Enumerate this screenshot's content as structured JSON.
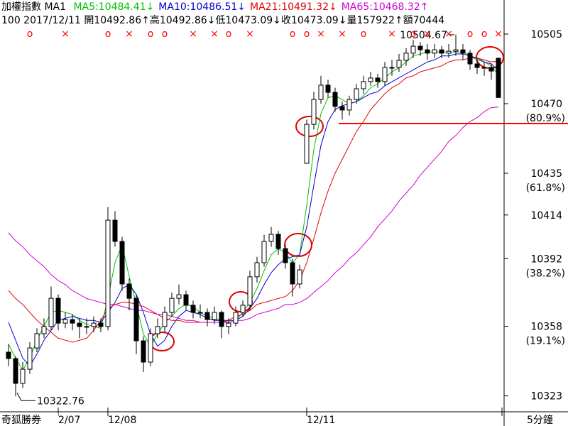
{
  "chart_data": {
    "type": "candlestick",
    "title": "加權指數 MA1",
    "info": "100 2017/12/11 開10492.86↑高10492.86↓低10473.09↓收10473.09↓量157922↑額70444",
    "up_color": "#ffffff",
    "down_color": "#000000",
    "candles": [
      [
        10345,
        10349,
        10338,
        10341.8
      ],
      [
        10341.8,
        10343,
        10322.76,
        10329.3
      ],
      [
        10329.3,
        10340,
        10327,
        10336.4
      ],
      [
        10336.4,
        10350,
        10334,
        10347.1
      ],
      [
        10347.1,
        10357,
        10345,
        10354.3
      ],
      [
        10354.3,
        10362,
        10352,
        10357.9
      ],
      [
        10357.9,
        10378,
        10356,
        10372.1
      ],
      [
        10372.1,
        10374,
        10356,
        10359.6
      ],
      [
        10359.6,
        10365,
        10357,
        10361.4
      ],
      [
        10361.4,
        10364,
        10356,
        10359.6
      ],
      [
        10359.6,
        10362,
        10352,
        10357.9
      ],
      [
        10357.9,
        10362,
        10354,
        10357.9
      ],
      [
        10357.9,
        10363,
        10355,
        10359.6
      ],
      [
        10359.6,
        10362,
        10355,
        10357.9
      ],
      [
        10357.9,
        10418,
        10356,
        10411.4
      ],
      [
        10411.4,
        10416,
        10398,
        10400.7
      ],
      [
        10400.7,
        10403,
        10376,
        10379.3
      ],
      [
        10379.3,
        10382,
        10366,
        10372.1
      ],
      [
        10372.1,
        10374,
        10344,
        10350.7
      ],
      [
        10350.7,
        10353,
        10335,
        10340
      ],
      [
        10340,
        10357,
        10338,
        10354.3
      ],
      [
        10354.3,
        10362,
        10352,
        10357.9
      ],
      [
        10357.9,
        10368,
        10355,
        10365
      ],
      [
        10365,
        10375,
        10363,
        10372.1
      ],
      [
        10372.1,
        10379,
        10369,
        10373.9
      ],
      [
        10373.9,
        10376,
        10366,
        10368.6
      ],
      [
        10368.6,
        10371,
        10362,
        10365
      ],
      [
        10365,
        10369,
        10362,
        10365
      ],
      [
        10365,
        10367,
        10358,
        10361.4
      ],
      [
        10361.4,
        10368,
        10359,
        10365
      ],
      [
        10365,
        10366,
        10352,
        10357.9
      ],
      [
        10357.9,
        10362,
        10354,
        10359.6
      ],
      [
        10359.6,
        10368,
        10358,
        10365
      ],
      [
        10365,
        10371,
        10363,
        10368.6
      ],
      [
        10368.6,
        10386,
        10366,
        10382.9
      ],
      [
        10382.9,
        10393,
        10380,
        10390
      ],
      [
        10390,
        10404,
        10388,
        10400.7
      ],
      [
        10400.7,
        10408,
        10398,
        10404.3
      ],
      [
        10404.3,
        10406,
        10394,
        10397.1
      ],
      [
        10397.1,
        10399,
        10387,
        10390
      ],
      [
        10390,
        10392,
        10373,
        10379.3
      ],
      [
        10379.3,
        10389,
        10377,
        10386.4
      ],
      [
        10440,
        10462,
        10440,
        10459.6
      ],
      [
        10459.6,
        10476,
        10457,
        10472.1
      ],
      [
        10472.1,
        10484,
        10470,
        10479.3
      ],
      [
        10479.3,
        10482,
        10473,
        10475.7
      ],
      [
        10475.7,
        10478,
        10466,
        10468.6
      ],
      [
        10468.6,
        10471,
        10462,
        10466.8
      ],
      [
        10466.8,
        10474,
        10464,
        10472.1
      ],
      [
        10472.1,
        10480,
        10470,
        10477.5
      ],
      [
        10477.5,
        10484,
        10475,
        10481.1
      ],
      [
        10481.1,
        10486,
        10479,
        10482.9
      ],
      [
        10482.9,
        10485,
        10478,
        10481.1
      ],
      [
        10481.1,
        10491,
        10479,
        10488.2
      ],
      [
        10488.2,
        10492,
        10484,
        10488.2
      ],
      [
        10488.2,
        10495,
        10486,
        10491.8
      ],
      [
        10491.8,
        10498,
        10489,
        10495.4
      ],
      [
        10495.4,
        10502,
        10493,
        10498.9
      ],
      [
        10498.9,
        10501,
        10494,
        10497.1
      ],
      [
        10497.1,
        10500,
        10492,
        10495.4
      ],
      [
        10495.4,
        10500,
        10493,
        10497.1
      ],
      [
        10497.1,
        10499,
        10493,
        10495.4
      ],
      [
        10495.4,
        10500,
        10493,
        10496.4
      ],
      [
        10496.4,
        10504.67,
        10494,
        10497.1
      ],
      [
        10497.1,
        10500,
        10492,
        10495.4
      ],
      [
        10495.4,
        10497,
        10487,
        10490
      ],
      [
        10490,
        10493,
        10485,
        10488.2
      ],
      [
        10488.2,
        10491,
        10484,
        10488.2
      ],
      [
        10488.2,
        10490,
        10482,
        10486.4
      ],
      [
        10492.86,
        10492.86,
        10473.09,
        10473.09
      ]
    ],
    "series": [
      {
        "name": "MA5:10484.41↓",
        "color": "#00c000",
        "values": [
          10349,
          10342,
          10336,
          10342,
          10351,
          10358,
          10365,
          10366,
          10365,
          10364,
          10361,
          10359,
          10358,
          10357,
          10372,
          10390,
          10399,
          10383,
          10369,
          10354,
          10348,
          10354,
          10360,
          10363,
          10367,
          10369,
          10368,
          10365,
          10363,
          10362,
          10361,
          10360,
          10361,
          10365,
          10370,
          10377,
          10386,
          10394,
          10397,
          10395,
          10390,
          10394,
          10419,
          10447,
          10465,
          10473,
          10474,
          10472,
          10470,
          10471,
          10474,
          10478,
          10480,
          10483,
          10486,
          10488,
          10491,
          10494,
          10495,
          10496,
          10496,
          10496,
          10496,
          10496,
          10496,
          10494,
          10492,
          10491,
          10489,
          10484.41
        ]
      },
      {
        "name": "MA10:10486.51↓",
        "color": "#0000d0",
        "values": [
          10360,
          10351,
          10342,
          10338,
          10344,
          10351,
          10356,
          10361,
          10362,
          10363,
          10362,
          10361,
          10361,
          10360,
          10365,
          10370,
          10377,
          10379,
          10374,
          10365,
          10354,
          10348,
          10351,
          10358,
          10363,
          10366,
          10365,
          10364,
          10362,
          10361,
          10361,
          10361,
          10361,
          10363,
          10367,
          10372,
          10379,
          10385,
          10389,
          10392,
          10393,
          10394,
          10408,
          10429,
          10449,
          10461,
          10467,
          10469,
          10470,
          10471,
          10473,
          10475,
          10476,
          10479,
          10481,
          10483,
          10485,
          10487,
          10489,
          10491,
          10492,
          10494,
          10494,
          10495,
          10495,
          10494,
          10493,
          10491,
          10490,
          10486.51
        ]
      },
      {
        "name": "MA21:10491.32↓",
        "color": "#e00000",
        "values": [
          10376,
          10372,
          10369,
          10365,
          10361,
          10358,
          10355,
          10352,
          10351,
          10350,
          10351,
          10352,
          10356,
          10361,
          10367,
          10369,
          10370,
          10370,
          10369,
          10368,
          10366,
          10364,
          10362,
          10361,
          10361,
          10360,
          10360,
          10360,
          10360,
          10360,
          10360,
          10361,
          10363,
          10364,
          10366,
          10369,
          10370,
          10371,
          10372,
          10373,
          10376,
          10381,
          10390,
          10402,
          10415,
          10426,
          10435,
          10442,
          10449,
          10456,
          10461,
          10467,
          10471,
          10475,
          10478,
          10480,
          10483,
          10484,
          10486,
          10487,
          10488,
          10489,
          10491,
          10492,
          10492,
          10493,
          10493,
          10492,
          10491,
          10491.32
        ]
      },
      {
        "name": "MA65:10468.32↑",
        "color": "#d000d0",
        "values": [
          10405,
          10401,
          10398,
          10394,
          10391,
          10388,
          10384,
          10381,
          10379,
          10376,
          10374,
          10372,
          10371,
          10370,
          10369,
          10369,
          10368,
          10367,
          10366,
          10366,
          10365,
          10364,
          10364,
          10363,
          10362,
          10361,
          10361,
          10360,
          10360,
          10360,
          10360,
          10360,
          10361,
          10361,
          10362,
          10364,
          10365,
          10366,
          10367,
          10369,
          10369,
          10370,
          10372,
          10375,
          10378,
          10381,
          10385,
          10388,
          10392,
          10395,
          10399,
          10403,
          10408,
          10412,
          10416,
          10421,
          10425,
          10429,
          10434,
          10438,
          10442,
          10446,
          10451,
          10454,
          10458,
          10461,
          10463,
          10466,
          10468,
          10468.32
        ]
      }
    ],
    "ylim": [
      10315,
      10515
    ],
    "yticks": [
      10505,
      10470,
      10435,
      10414,
      10392,
      10358,
      10323
    ],
    "ytick_notes": [
      {
        "value": 10470,
        "label": "(80.9%)"
      },
      {
        "value": 10435,
        "label": "(61.8%)"
      },
      {
        "value": 10392,
        "label": "(38.2%)"
      },
      {
        "value": 10358,
        "label": "(19.1%)"
      }
    ],
    "hline": {
      "value": 10460,
      "color": "#ff0000"
    },
    "high_label": 10504.67,
    "low_label": 10322.76,
    "signal_color": "#ff0000",
    "signals": [
      {
        "bar": 3,
        "label": "o"
      },
      {
        "bar": 8,
        "label": "×"
      },
      {
        "bar": 14,
        "label": "o"
      },
      {
        "bar": 17,
        "label": "×"
      },
      {
        "bar": 20,
        "label": "o"
      },
      {
        "bar": 22,
        "label": "o"
      },
      {
        "bar": 26,
        "label": "×"
      },
      {
        "bar": 29,
        "label": "×"
      },
      {
        "bar": 31,
        "label": "o"
      },
      {
        "bar": 34,
        "label": "×"
      },
      {
        "bar": 40,
        "label": "o"
      },
      {
        "bar": 42,
        "label": "o"
      },
      {
        "bar": 44,
        "label": "×"
      },
      {
        "bar": 47,
        "label": "×"
      },
      {
        "bar": 50,
        "label": "o"
      },
      {
        "bar": 54,
        "label": "×"
      },
      {
        "bar": 57,
        "label": "o"
      },
      {
        "bar": 59,
        "label": "×"
      },
      {
        "bar": 62,
        "label": "×"
      },
      {
        "bar": 65,
        "label": "o"
      },
      {
        "bar": 67,
        "label": "o"
      },
      {
        "bar": 69,
        "label": "×"
      }
    ],
    "x_labels": [
      {
        "bar": 7,
        "label": "2/07"
      },
      {
        "bar": 14,
        "label": "12/08"
      },
      {
        "bar": 42,
        "label": "12/11"
      }
    ],
    "footer_left": "奇狐勝券",
    "footer_right": "5分鐘"
  }
}
